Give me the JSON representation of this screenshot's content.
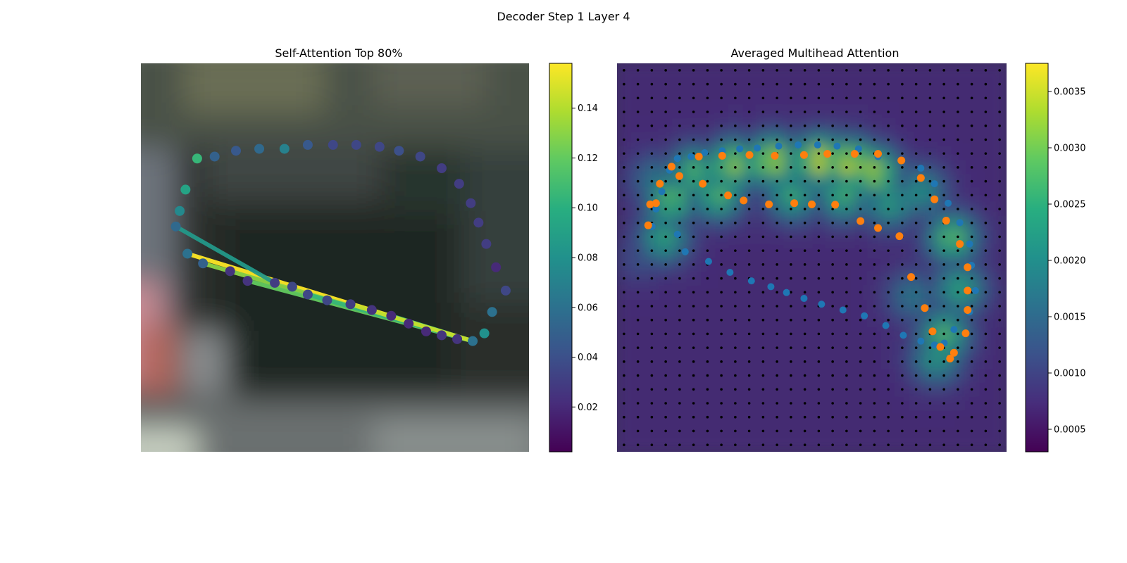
{
  "figure": {
    "title": "Decoder Step 1 Layer 4"
  },
  "chart_data": [
    {
      "type": "scatter",
      "title": "Self-Attention Top 80%",
      "xlabel": "",
      "ylabel": "",
      "axes_visible": false,
      "colormap": "viridis",
      "background": "blurred street scene image",
      "colorbar": {
        "range": [
          0.002,
          0.158
        ],
        "ticks": [
          "0.02",
          "0.04",
          "0.06",
          "0.08",
          "0.10",
          "0.12",
          "0.14"
        ],
        "tick_values": [
          0.02,
          0.04,
          0.06,
          0.08,
          0.1,
          0.12,
          0.14
        ]
      },
      "points": [
        [
          0.09,
          0.42,
          0.055
        ],
        [
          0.1,
          0.38,
          0.075
        ],
        [
          0.115,
          0.325,
          0.092
        ],
        [
          0.145,
          0.245,
          0.105
        ],
        [
          0.19,
          0.24,
          0.05
        ],
        [
          0.245,
          0.225,
          0.045
        ],
        [
          0.305,
          0.22,
          0.055
        ],
        [
          0.37,
          0.22,
          0.07
        ],
        [
          0.43,
          0.21,
          0.045
        ],
        [
          0.495,
          0.21,
          0.035
        ],
        [
          0.555,
          0.21,
          0.035
        ],
        [
          0.615,
          0.215,
          0.035
        ],
        [
          0.665,
          0.225,
          0.04
        ],
        [
          0.72,
          0.24,
          0.035
        ],
        [
          0.775,
          0.27,
          0.03
        ],
        [
          0.82,
          0.31,
          0.03
        ],
        [
          0.85,
          0.36,
          0.03
        ],
        [
          0.87,
          0.41,
          0.03
        ],
        [
          0.89,
          0.465,
          0.03
        ],
        [
          0.915,
          0.525,
          0.02
        ],
        [
          0.94,
          0.585,
          0.035
        ],
        [
          0.905,
          0.64,
          0.06
        ],
        [
          0.885,
          0.695,
          0.08
        ],
        [
          0.855,
          0.715,
          0.06
        ],
        [
          0.815,
          0.71,
          0.025
        ],
        [
          0.775,
          0.7,
          0.025
        ],
        [
          0.735,
          0.69,
          0.02
        ],
        [
          0.69,
          0.67,
          0.02
        ],
        [
          0.645,
          0.65,
          0.02
        ],
        [
          0.595,
          0.635,
          0.025
        ],
        [
          0.54,
          0.62,
          0.03
        ],
        [
          0.48,
          0.61,
          0.035
        ],
        [
          0.43,
          0.595,
          0.035
        ],
        [
          0.39,
          0.575,
          0.035
        ],
        [
          0.345,
          0.565,
          0.03
        ],
        [
          0.275,
          0.56,
          0.025
        ],
        [
          0.23,
          0.535,
          0.025
        ],
        [
          0.16,
          0.515,
          0.05
        ],
        [
          0.12,
          0.49,
          0.06
        ]
      ],
      "attention_lines": [
        {
          "from": [
            0.855,
            0.715
          ],
          "to": [
            0.12,
            0.49
          ],
          "weight": 0.158
        },
        {
          "from": [
            0.855,
            0.715
          ],
          "to": [
            0.16,
            0.515
          ],
          "weight": 0.13
        },
        {
          "from": [
            0.855,
            0.715
          ],
          "to": [
            0.275,
            0.56
          ],
          "weight": 0.12
        },
        {
          "from": [
            0.855,
            0.715
          ],
          "to": [
            0.43,
            0.595
          ],
          "weight": 0.105
        },
        {
          "from": [
            0.855,
            0.715
          ],
          "to": [
            0.645,
            0.65
          ],
          "weight": 0.11
        },
        {
          "from": [
            0.855,
            0.715
          ],
          "to": [
            0.54,
            0.62
          ],
          "weight": 0.145
        },
        {
          "from": [
            0.345,
            0.565
          ],
          "to": [
            0.09,
            0.42
          ],
          "weight": 0.085
        }
      ]
    },
    {
      "type": "heatmap",
      "title": "Averaged Multihead Attention",
      "xlabel": "",
      "ylabel": "",
      "axes_visible": false,
      "colormap": "viridis",
      "grid_size": [
        28,
        28
      ],
      "colorbar": {
        "range": [
          0.0003,
          0.00375
        ],
        "ticks": [
          "0.0005",
          "0.0010",
          "0.0015",
          "0.0020",
          "0.0025",
          "0.0030",
          "0.0035"
        ],
        "tick_values": [
          0.0005,
          0.001,
          0.0015,
          0.002,
          0.0025,
          0.003,
          0.0035
        ]
      },
      "blue_points": [
        [
          0.09,
          0.42
        ],
        [
          0.1,
          0.375
        ],
        [
          0.115,
          0.33
        ],
        [
          0.135,
          0.275
        ],
        [
          0.155,
          0.245
        ],
        [
          0.19,
          0.24
        ],
        [
          0.225,
          0.23
        ],
        [
          0.27,
          0.225
        ],
        [
          0.315,
          0.22
        ],
        [
          0.36,
          0.218
        ],
        [
          0.415,
          0.213
        ],
        [
          0.465,
          0.21
        ],
        [
          0.515,
          0.21
        ],
        [
          0.565,
          0.213
        ],
        [
          0.62,
          0.22
        ],
        [
          0.67,
          0.24
        ],
        [
          0.78,
          0.27
        ],
        [
          0.815,
          0.31
        ],
        [
          0.85,
          0.36
        ],
        [
          0.88,
          0.41
        ],
        [
          0.905,
          0.465
        ],
        [
          0.91,
          0.52
        ],
        [
          0.92,
          0.585
        ],
        [
          0.905,
          0.64
        ],
        [
          0.865,
          0.685
        ],
        [
          0.84,
          0.72
        ],
        [
          0.815,
          0.725
        ],
        [
          0.78,
          0.715
        ],
        [
          0.735,
          0.7
        ],
        [
          0.69,
          0.675
        ],
        [
          0.635,
          0.65
        ],
        [
          0.58,
          0.635
        ],
        [
          0.525,
          0.62
        ],
        [
          0.48,
          0.605
        ],
        [
          0.435,
          0.59
        ],
        [
          0.395,
          0.575
        ],
        [
          0.345,
          0.56
        ],
        [
          0.29,
          0.538
        ],
        [
          0.235,
          0.51
        ],
        [
          0.175,
          0.485
        ],
        [
          0.155,
          0.44
        ]
      ],
      "orange_points": [
        [
          0.08,
          0.417
        ],
        [
          0.085,
          0.363
        ],
        [
          0.11,
          0.31
        ],
        [
          0.14,
          0.266
        ],
        [
          0.21,
          0.24
        ],
        [
          0.27,
          0.238
        ],
        [
          0.34,
          0.236
        ],
        [
          0.405,
          0.238
        ],
        [
          0.48,
          0.236
        ],
        [
          0.54,
          0.233
        ],
        [
          0.61,
          0.233
        ],
        [
          0.67,
          0.233
        ],
        [
          0.73,
          0.25
        ],
        [
          0.78,
          0.295
        ],
        [
          0.815,
          0.35
        ],
        [
          0.845,
          0.405
        ],
        [
          0.88,
          0.465
        ],
        [
          0.9,
          0.525
        ],
        [
          0.9,
          0.585
        ],
        [
          0.9,
          0.635
        ],
        [
          0.895,
          0.695
        ],
        [
          0.865,
          0.745
        ],
        [
          0.855,
          0.76
        ],
        [
          0.83,
          0.73
        ],
        [
          0.81,
          0.69
        ],
        [
          0.79,
          0.63
        ],
        [
          0.755,
          0.55
        ],
        [
          0.725,
          0.445
        ],
        [
          0.67,
          0.424
        ],
        [
          0.625,
          0.406
        ],
        [
          0.56,
          0.364
        ],
        [
          0.5,
          0.363
        ],
        [
          0.455,
          0.36
        ],
        [
          0.39,
          0.363
        ],
        [
          0.325,
          0.353
        ],
        [
          0.285,
          0.34
        ],
        [
          0.22,
          0.31
        ],
        [
          0.16,
          0.29
        ],
        [
          0.1,
          0.36
        ]
      ],
      "hot_cells": [
        [
          0.2,
          0.28,
          0.0028
        ],
        [
          0.3,
          0.26,
          0.0032
        ],
        [
          0.4,
          0.25,
          0.0034
        ],
        [
          0.52,
          0.25,
          0.0036
        ],
        [
          0.6,
          0.26,
          0.0035
        ],
        [
          0.66,
          0.28,
          0.0033
        ],
        [
          0.14,
          0.35,
          0.0029
        ],
        [
          0.12,
          0.45,
          0.0025
        ],
        [
          0.26,
          0.34,
          0.0028
        ],
        [
          0.45,
          0.34,
          0.0026
        ],
        [
          0.58,
          0.34,
          0.0027
        ],
        [
          0.7,
          0.36,
          0.0024
        ],
        [
          0.78,
          0.33,
          0.0022
        ],
        [
          0.86,
          0.45,
          0.0029
        ],
        [
          0.88,
          0.58,
          0.0025
        ],
        [
          0.84,
          0.7,
          0.0028
        ],
        [
          0.82,
          0.76,
          0.0023
        ],
        [
          0.76,
          0.6,
          0.0018
        ],
        [
          0.1,
          0.3,
          0.0018
        ],
        [
          0.06,
          0.5,
          0.0012
        ]
      ]
    }
  ]
}
